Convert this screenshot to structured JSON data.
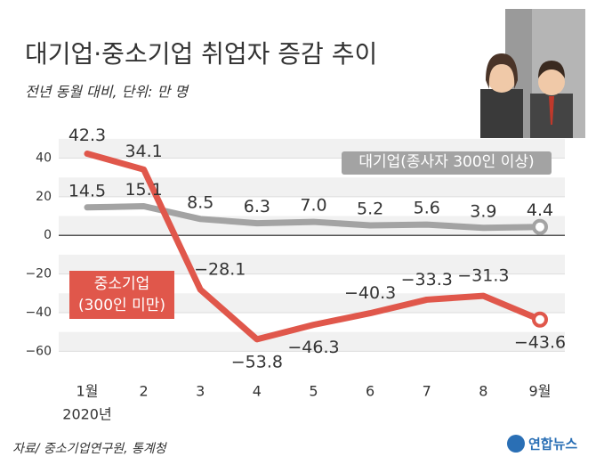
{
  "chart_data": {
    "type": "line",
    "title": "대기업·중소기업 취업자 증감 추이",
    "subtitle": "전년 동월 대비, 단위: 만 명",
    "categories": [
      "1월",
      "2",
      "3",
      "4",
      "5",
      "6",
      "7",
      "8",
      "9월"
    ],
    "x_note": "2020년",
    "series": [
      {
        "name": "대기업(종사자 300인 이상)",
        "color": "#a3a3a3",
        "values": [
          14.5,
          15.1,
          8.5,
          6.3,
          7.0,
          5.2,
          5.6,
          3.9,
          4.4
        ],
        "value_labels": [
          "14.5",
          "15.1",
          "8.5",
          "6.3",
          "7.0",
          "5.2",
          "5.6",
          "3.9",
          "4.4"
        ]
      },
      {
        "name": "중소기업\n(300인 미만)",
        "color": "#e0574b",
        "values": [
          42.3,
          34.1,
          -28.1,
          -53.8,
          -46.3,
          -40.3,
          -33.3,
          -31.3,
          -43.6
        ],
        "value_labels": [
          "42.3",
          "34.1",
          "−28.1",
          "−53.8",
          "−46.3",
          "−40.3",
          "−33.3",
          "−31.3",
          "−43.6"
        ]
      }
    ],
    "ylim": [
      -70,
      55
    ],
    "yticks": [
      {
        "value": 40,
        "label": "40"
      },
      {
        "value": 20,
        "label": "20"
      },
      0,
      {
        "value": -20,
        "label": "−20"
      },
      {
        "value": -40,
        "label": "−40"
      },
      {
        "value": -60,
        "label": "−60"
      }
    ],
    "grid": true,
    "source": "자료/ 중소기업연구원, 통계청",
    "logo": "연합뉴스"
  }
}
